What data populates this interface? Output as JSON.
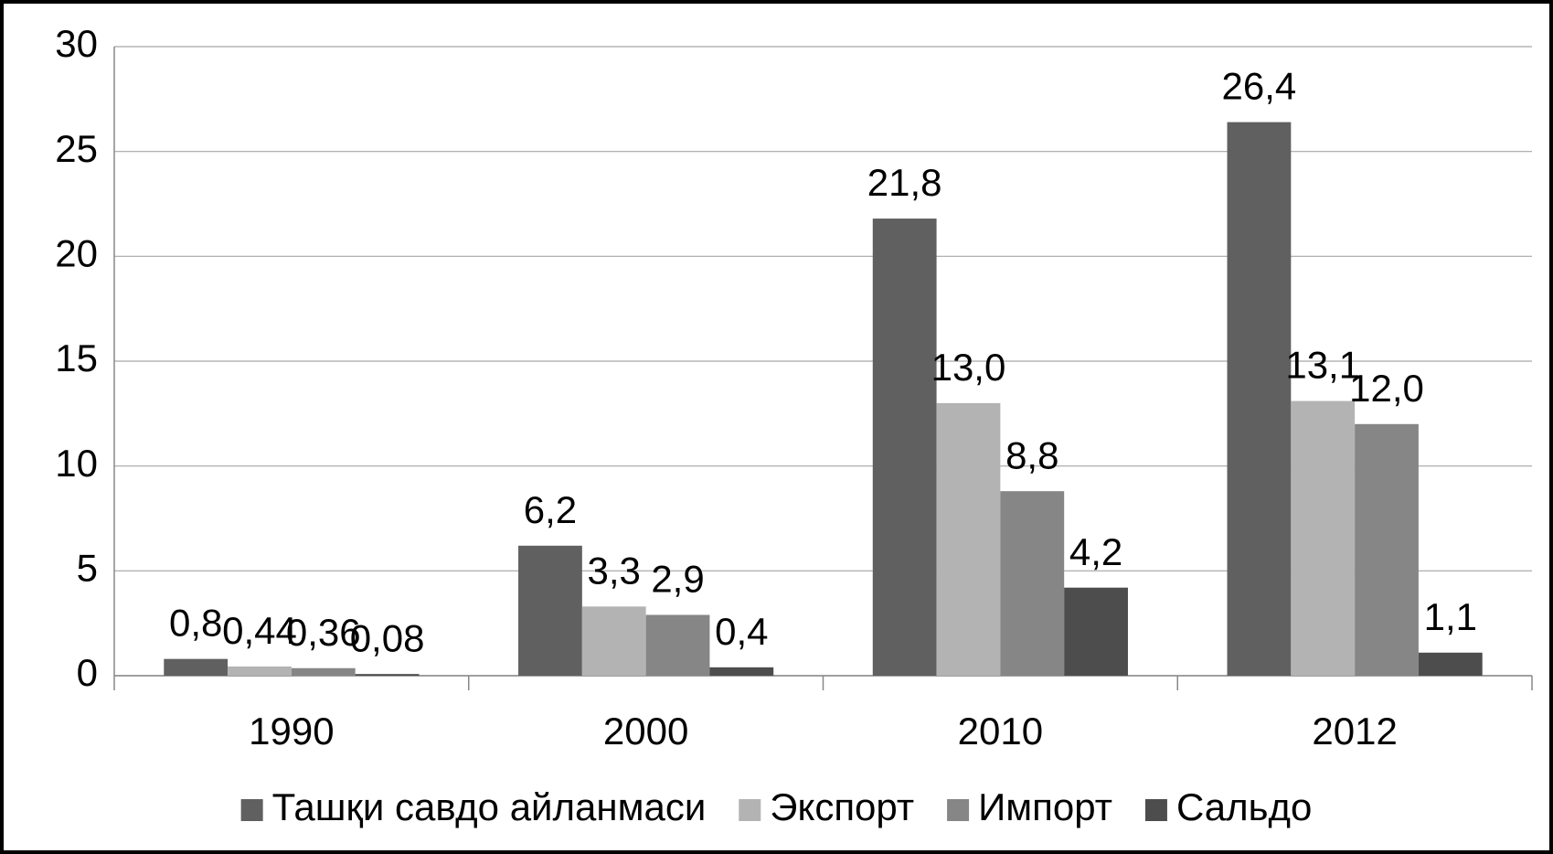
{
  "chart_data": {
    "type": "bar",
    "categories": [
      "1990",
      "2000",
      "2010",
      "2012"
    ],
    "series": [
      {
        "name": "Ташқи савдо айланмаси",
        "color": "#606060",
        "values": [
          0.8,
          6.2,
          21.8,
          26.4
        ],
        "value_labels": [
          "0,8",
          "6,2",
          "21,8",
          "26,4"
        ]
      },
      {
        "name": "Экспорт",
        "color": "#b3b3b3",
        "values": [
          0.44,
          3.3,
          13.0,
          13.1
        ],
        "value_labels": [
          "0,44",
          "3,3",
          "13,0",
          "13,1"
        ]
      },
      {
        "name": "Импорт",
        "color": "#868686",
        "values": [
          0.36,
          2.9,
          8.8,
          12.0
        ],
        "value_labels": [
          "0,36",
          "2,9",
          "8,8",
          "12,0"
        ]
      },
      {
        "name": "Сальдо",
        "color": "#4d4d4d",
        "values": [
          0.08,
          0.4,
          4.2,
          1.1
        ],
        "value_labels": [
          "0,08",
          "0,4",
          "4,2",
          "1,1"
        ]
      }
    ],
    "ylim": [
      0,
      30
    ],
    "yticks": [
      0,
      5,
      10,
      15,
      20,
      25,
      30
    ],
    "grid": true,
    "legend": "bottom"
  }
}
